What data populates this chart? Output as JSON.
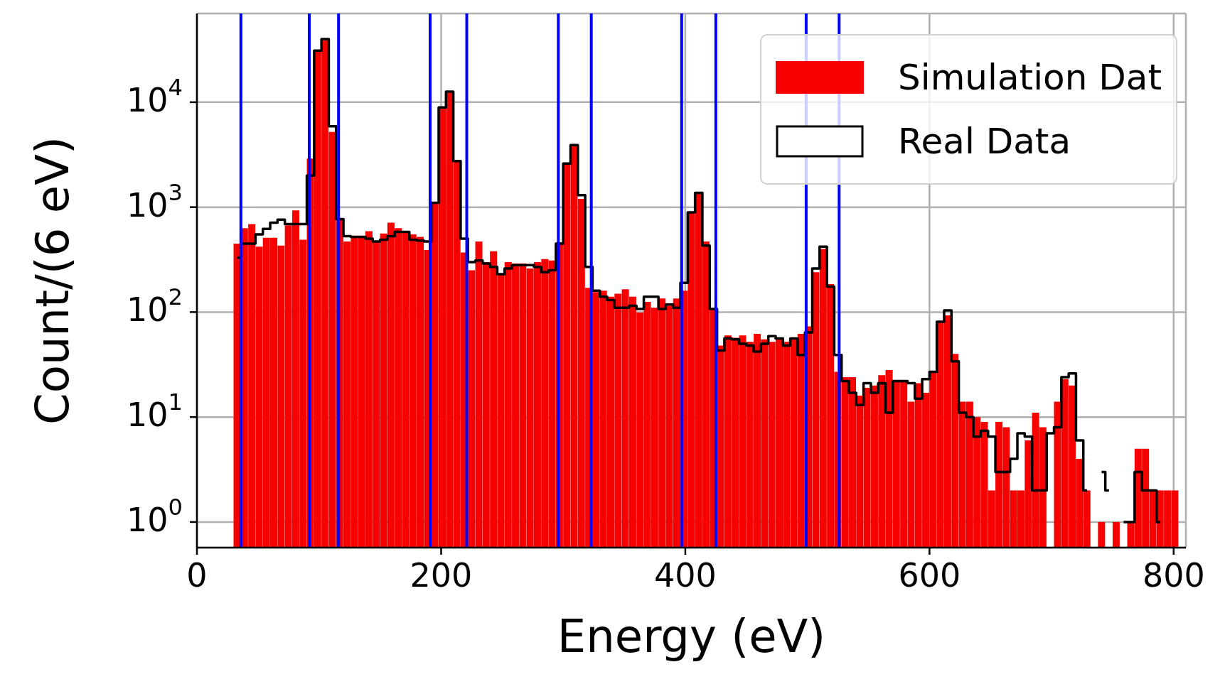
{
  "chart_data": {
    "type": "histogram",
    "xlabel": "Energy (eV)",
    "ylabel": "Count/(6 eV)",
    "bins": [
      30,
      36,
      42,
      48,
      54,
      60,
      66,
      72,
      78,
      84,
      90,
      96,
      102,
      108,
      114,
      120,
      126,
      132,
      138,
      144,
      150,
      156,
      162,
      168,
      174,
      180,
      186,
      192,
      198,
      204,
      210,
      216,
      222,
      228,
      234,
      240,
      246,
      252,
      258,
      264,
      270,
      276,
      282,
      288,
      294,
      300,
      306,
      312,
      318,
      324,
      330,
      336,
      342,
      348,
      354,
      360,
      366,
      372,
      378,
      384,
      390,
      396,
      402,
      408,
      414,
      420,
      426,
      432,
      438,
      444,
      450,
      456,
      462,
      468,
      474,
      480,
      486,
      492,
      498,
      504,
      510,
      516,
      522,
      528,
      534,
      540,
      546,
      552,
      558,
      564,
      570,
      576,
      582,
      588,
      594,
      600,
      606,
      612,
      618,
      624,
      630,
      636,
      642,
      648,
      654,
      660,
      666,
      672,
      678,
      684,
      690,
      696,
      702,
      708,
      714,
      720,
      726,
      732,
      738,
      744,
      750,
      756,
      762,
      768,
      774,
      780,
      786,
      792,
      798,
      804
    ],
    "series": [
      {
        "name": "Simulation Dat",
        "color": "#f70000",
        "values": [
          450,
          630,
          690,
          420,
          510,
          510,
          430,
          670,
          930,
          490,
          2900,
          31000,
          39000,
          5200,
          750,
          470,
          520,
          510,
          590,
          470,
          560,
          710,
          630,
          580,
          550,
          520,
          390,
          1100,
          8800,
          12300,
          2750,
          370,
          250,
          470,
          300,
          380,
          230,
          300,
          290,
          290,
          260,
          300,
          320,
          310,
          460,
          2600,
          3900,
          1200,
          170,
          155,
          160,
          140,
          150,
          165,
          140,
          99,
          125,
          110,
          135,
          115,
          135,
          160,
          880,
          1370,
          470,
          107,
          48,
          60,
          57,
          60,
          52,
          62,
          55,
          52,
          55,
          52,
          56,
          62,
          73,
          240,
          400,
          185,
          27,
          24,
          24,
          16,
          19,
          20,
          25,
          28,
          22,
          22,
          14,
          21,
          17,
          27,
          81,
          93,
          40,
          14,
          14,
          10,
          9,
          2,
          9,
          8,
          2,
          2,
          6,
          11,
          8,
          null,
          14,
          23,
          20,
          4,
          2,
          null,
          1,
          null,
          1,
          null,
          1,
          5,
          5,
          2,
          2,
          2,
          2
        ]
      },
      {
        "name": "Real Data",
        "type": "step",
        "color": "#000000",
        "x": [
          33,
          39,
          45,
          51,
          57,
          63,
          69,
          75,
          81,
          87,
          93,
          99,
          105,
          111,
          117,
          123,
          129,
          135,
          141,
          147,
          153,
          159,
          165,
          171,
          177,
          183,
          189,
          195,
          201,
          207,
          213,
          219,
          225,
          231,
          237,
          243,
          249,
          255,
          261,
          267,
          273,
          279,
          285,
          291,
          297,
          303,
          309,
          315,
          321,
          327,
          333,
          339,
          345,
          351,
          357,
          363,
          369,
          375,
          381,
          387,
          393,
          399,
          405,
          411,
          417,
          423,
          429,
          435,
          441,
          447,
          453,
          459,
          465,
          471,
          477,
          483,
          489,
          495,
          501,
          507,
          513,
          519,
          525,
          531,
          537,
          543,
          549,
          555,
          561,
          567,
          573,
          579,
          585,
          591,
          597,
          603,
          609,
          615,
          621,
          627,
          633,
          639,
          645,
          651,
          657,
          663,
          669,
          675,
          681,
          687,
          693,
          699,
          705,
          711,
          717,
          723,
          729,
          735,
          741,
          747,
          753,
          759,
          765,
          771,
          777,
          783,
          789
        ],
        "values": [
          330,
          450,
          450,
          550,
          620,
          710,
          760,
          690,
          690,
          690,
          2000,
          31000,
          40000,
          5900,
          770,
          530,
          520,
          520,
          500,
          470,
          490,
          530,
          580,
          580,
          490,
          480,
          470,
          1100,
          8900,
          12600,
          2750,
          500,
          300,
          310,
          290,
          270,
          230,
          260,
          280,
          280,
          280,
          270,
          240,
          250,
          450,
          2600,
          3900,
          1300,
          270,
          160,
          140,
          130,
          110,
          110,
          115,
          107,
          140,
          140,
          107,
          118,
          110,
          190,
          890,
          1370,
          430,
          107,
          43,
          56,
          55,
          50,
          48,
          42,
          50,
          59,
          56,
          48,
          56,
          39,
          64,
          260,
          420,
          175,
          39,
          22,
          17,
          13,
          21,
          17,
          21,
          11,
          22,
          22,
          21,
          15,
          23,
          27,
          81,
          104,
          34,
          11,
          10,
          6.5,
          7.4,
          6.5,
          3,
          3,
          4,
          7,
          6.5,
          2,
          2,
          7,
          8,
          24,
          26,
          6,
          2,
          null,
          3,
          2,
          null,
          1,
          1,
          3,
          2,
          2,
          1
        ]
      }
    ],
    "ref_lines": [
      {
        "axis": "x",
        "value": 36,
        "color": "#0000ff"
      },
      {
        "axis": "x",
        "value": 92,
        "color": "#0000ff"
      },
      {
        "axis": "x",
        "value": 116,
        "color": "#0000ff"
      },
      {
        "axis": "x",
        "value": 191,
        "color": "#0000ff"
      },
      {
        "axis": "x",
        "value": 221,
        "color": "#0000ff"
      },
      {
        "axis": "x",
        "value": 296,
        "color": "#0000ff"
      },
      {
        "axis": "x",
        "value": 323,
        "color": "#0000ff"
      },
      {
        "axis": "x",
        "value": 397,
        "color": "#0000ff"
      },
      {
        "axis": "x",
        "value": 425,
        "color": "#0000ff"
      },
      {
        "axis": "x",
        "value": 499,
        "color": "#0000ff"
      },
      {
        "axis": "x",
        "value": 526,
        "color": "#0000ff"
      }
    ],
    "xlim": [
      0,
      810
    ],
    "xticks": [
      0,
      200,
      400,
      600,
      800
    ],
    "ylim": [
      0.57,
      70000
    ],
    "yticks": [
      {
        "value": 1,
        "label": "10$^{0}$"
      },
      {
        "value": 10,
        "label": "10$^{1}$"
      },
      {
        "value": 100,
        "label": "10$^{2}$"
      },
      {
        "value": 1000,
        "label": "10$^{3}$"
      },
      {
        "value": 10000,
        "label": "10$^{4}$"
      }
    ],
    "log": "y",
    "grid": true,
    "legend": "top right"
  }
}
